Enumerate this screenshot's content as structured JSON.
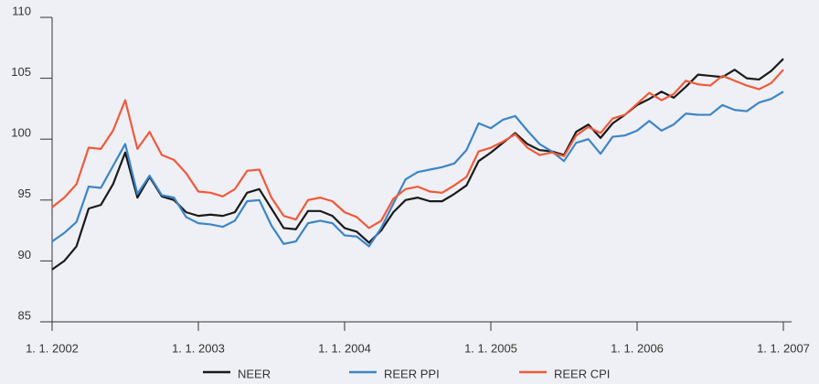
{
  "chart_data": {
    "type": "line",
    "categories": [
      "1. 1. 2002",
      null,
      null,
      null,
      null,
      null,
      null,
      null,
      null,
      null,
      null,
      null,
      "1. 1. 2003",
      null,
      null,
      null,
      null,
      null,
      null,
      null,
      null,
      null,
      null,
      null,
      "1. 1. 2004",
      null,
      null,
      null,
      null,
      null,
      null,
      null,
      null,
      null,
      null,
      null,
      "1. 1. 2005",
      null,
      null,
      null,
      null,
      null,
      null,
      null,
      null,
      null,
      null,
      null,
      "1. 1. 2006",
      null,
      null,
      null,
      null,
      null,
      null,
      null,
      null,
      null,
      null,
      null,
      "1. 1. 2007"
    ],
    "series": [
      {
        "name": "NEER",
        "color": "#1a1a1a",
        "values": [
          89.3,
          90.0,
          91.2,
          94.3,
          94.6,
          96.3,
          98.9,
          95.2,
          96.9,
          95.3,
          95.0,
          94.0,
          93.7,
          93.8,
          93.7,
          94.0,
          95.6,
          95.9,
          94.3,
          92.7,
          92.6,
          94.1,
          94.1,
          93.7,
          92.7,
          92.4,
          91.5,
          92.5,
          94.0,
          95.0,
          95.2,
          94.9,
          94.9,
          95.5,
          96.2,
          98.2,
          98.9,
          99.7,
          100.5,
          99.6,
          99.1,
          99.0,
          98.7,
          100.6,
          101.2,
          100.1,
          101.3,
          102.0,
          102.8,
          103.3,
          103.9,
          103.4,
          104.3,
          105.3,
          105.2,
          105.1,
          105.7,
          105.0,
          104.9,
          105.6,
          106.6
        ]
      },
      {
        "name": "REER PPI",
        "color": "#3d85c6",
        "values": [
          91.6,
          92.3,
          93.2,
          96.1,
          96.0,
          97.8,
          99.6,
          95.5,
          97.0,
          95.4,
          95.2,
          93.6,
          93.1,
          93.0,
          92.8,
          93.3,
          94.9,
          95.0,
          92.9,
          91.4,
          91.6,
          93.1,
          93.3,
          93.1,
          92.1,
          92.0,
          91.2,
          92.7,
          94.7,
          96.7,
          97.3,
          97.5,
          97.7,
          98.0,
          99.1,
          101.3,
          100.9,
          101.6,
          101.9,
          100.7,
          99.6,
          99.0,
          98.2,
          99.7,
          100.0,
          98.8,
          100.2,
          100.3,
          100.7,
          101.5,
          100.7,
          101.2,
          102.1,
          102.0,
          102.0,
          102.8,
          102.4,
          102.3,
          103.0,
          103.3,
          103.9
        ]
      },
      {
        "name": "REER CPI",
        "color": "#f05a3a",
        "values": [
          94.4,
          95.2,
          96.3,
          99.3,
          99.2,
          100.7,
          103.2,
          99.2,
          100.6,
          98.7,
          98.3,
          97.2,
          95.7,
          95.6,
          95.3,
          95.9,
          97.4,
          97.5,
          95.2,
          93.7,
          93.4,
          95.0,
          95.2,
          94.9,
          94.0,
          93.6,
          92.7,
          93.3,
          95.1,
          95.9,
          96.1,
          95.7,
          95.6,
          96.2,
          96.9,
          99.0,
          99.3,
          99.8,
          100.4,
          99.3,
          98.7,
          98.9,
          98.6,
          100.3,
          101.0,
          100.5,
          101.7,
          102.0,
          102.9,
          103.8,
          103.2,
          103.7,
          104.8,
          104.5,
          104.4,
          105.2,
          104.8,
          104.4,
          104.1,
          104.6,
          105.7
        ]
      }
    ],
    "ylim": [
      85,
      110
    ],
    "yticks": [
      85,
      90,
      95,
      100,
      105,
      110
    ],
    "legend": "bottom"
  }
}
